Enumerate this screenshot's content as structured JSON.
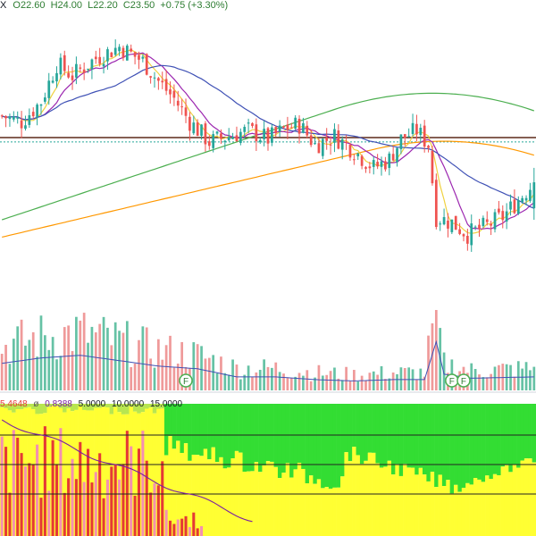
{
  "header": {
    "symbol_tail": "X",
    "open": "O22.60",
    "high": "H24.00",
    "low": "L22.20",
    "close": "C23.50",
    "change": "+0.75 (+3.30%)"
  },
  "indicator_legend": {
    "value1": "5.4648",
    "sep": "ø",
    "value2": "0.8388",
    "levels": [
      "5.0000",
      "10.0000",
      "15.0000"
    ]
  },
  "colors": {
    "up": "#26a69a",
    "down": "#ef5350",
    "ma_fast": "#f0d140",
    "ma_mid": "#9c27b0",
    "ma_slow": "#3f51b5",
    "ma_long_green": "#4caf50",
    "ma_long_orange": "#ff9800",
    "vol_up": "#66c2a5",
    "vol_down": "#ef9a9a",
    "ind_red": "#e53935",
    "ind_pink": "#f48fb1",
    "ind_yellow": "#ffff33",
    "ind_green": "#33dd33"
  },
  "markers": [
    {
      "label": "F",
      "bar": 47
    },
    {
      "label": "F",
      "bar": 115
    },
    {
      "label": "F",
      "bar": 118
    }
  ],
  "chart_data": {
    "type": "candlestick",
    "panes": [
      "price",
      "volume",
      "indicator"
    ],
    "ohlc_last": {
      "open": 22.6,
      "high": 24.0,
      "low": 22.2,
      "close": 23.5
    },
    "price_anchors": [
      [
        0,
        25.8
      ],
      [
        5,
        25.6
      ],
      [
        10,
        26.3
      ],
      [
        14,
        27.6
      ],
      [
        18,
        27.2
      ],
      [
        24,
        27.8
      ],
      [
        30,
        28.2
      ],
      [
        36,
        27.7
      ],
      [
        40,
        27.0
      ],
      [
        44,
        26.4
      ],
      [
        48,
        25.6
      ],
      [
        53,
        24.9
      ],
      [
        58,
        25.1
      ],
      [
        63,
        25.3
      ],
      [
        68,
        25.0
      ],
      [
        73,
        25.4
      ],
      [
        76,
        25.5
      ],
      [
        80,
        24.8
      ],
      [
        85,
        25.1
      ],
      [
        90,
        24.6
      ],
      [
        95,
        24.0
      ],
      [
        99,
        24.3
      ],
      [
        102,
        25.0
      ],
      [
        106,
        25.3
      ],
      [
        109,
        24.8
      ],
      [
        111,
        22.3
      ],
      [
        115,
        22.1
      ],
      [
        119,
        21.7
      ],
      [
        124,
        22.0
      ],
      [
        128,
        22.3
      ],
      [
        132,
        22.9
      ],
      [
        136,
        23.5
      ]
    ],
    "moving_averages": [
      {
        "id": "ma_fast",
        "period": 5
      },
      {
        "id": "ma_mid",
        "period": 10
      },
      {
        "id": "ma_slow",
        "period": 30
      },
      {
        "id": "ma_long_green",
        "period": 120
      },
      {
        "id": "ma_long_orange",
        "period": 200
      }
    ],
    "horizontal_levels": [
      25.05,
      24.9
    ],
    "volume_anchors": [
      [
        0,
        1.0
      ],
      [
        10,
        1.2
      ],
      [
        20,
        1.3
      ],
      [
        30,
        1.1
      ],
      [
        40,
        0.9
      ],
      [
        50,
        0.8
      ],
      [
        60,
        0.5
      ],
      [
        70,
        0.5
      ],
      [
        80,
        0.4
      ],
      [
        90,
        0.35
      ],
      [
        100,
        0.4
      ],
      [
        108,
        0.4
      ],
      [
        111,
        1.8
      ],
      [
        113,
        0.6
      ],
      [
        120,
        0.45
      ],
      [
        136,
        0.5
      ]
    ],
    "indicator_levels": [
      5,
      10,
      15
    ],
    "y_range_price": [
      19.6,
      29.2
    ]
  }
}
